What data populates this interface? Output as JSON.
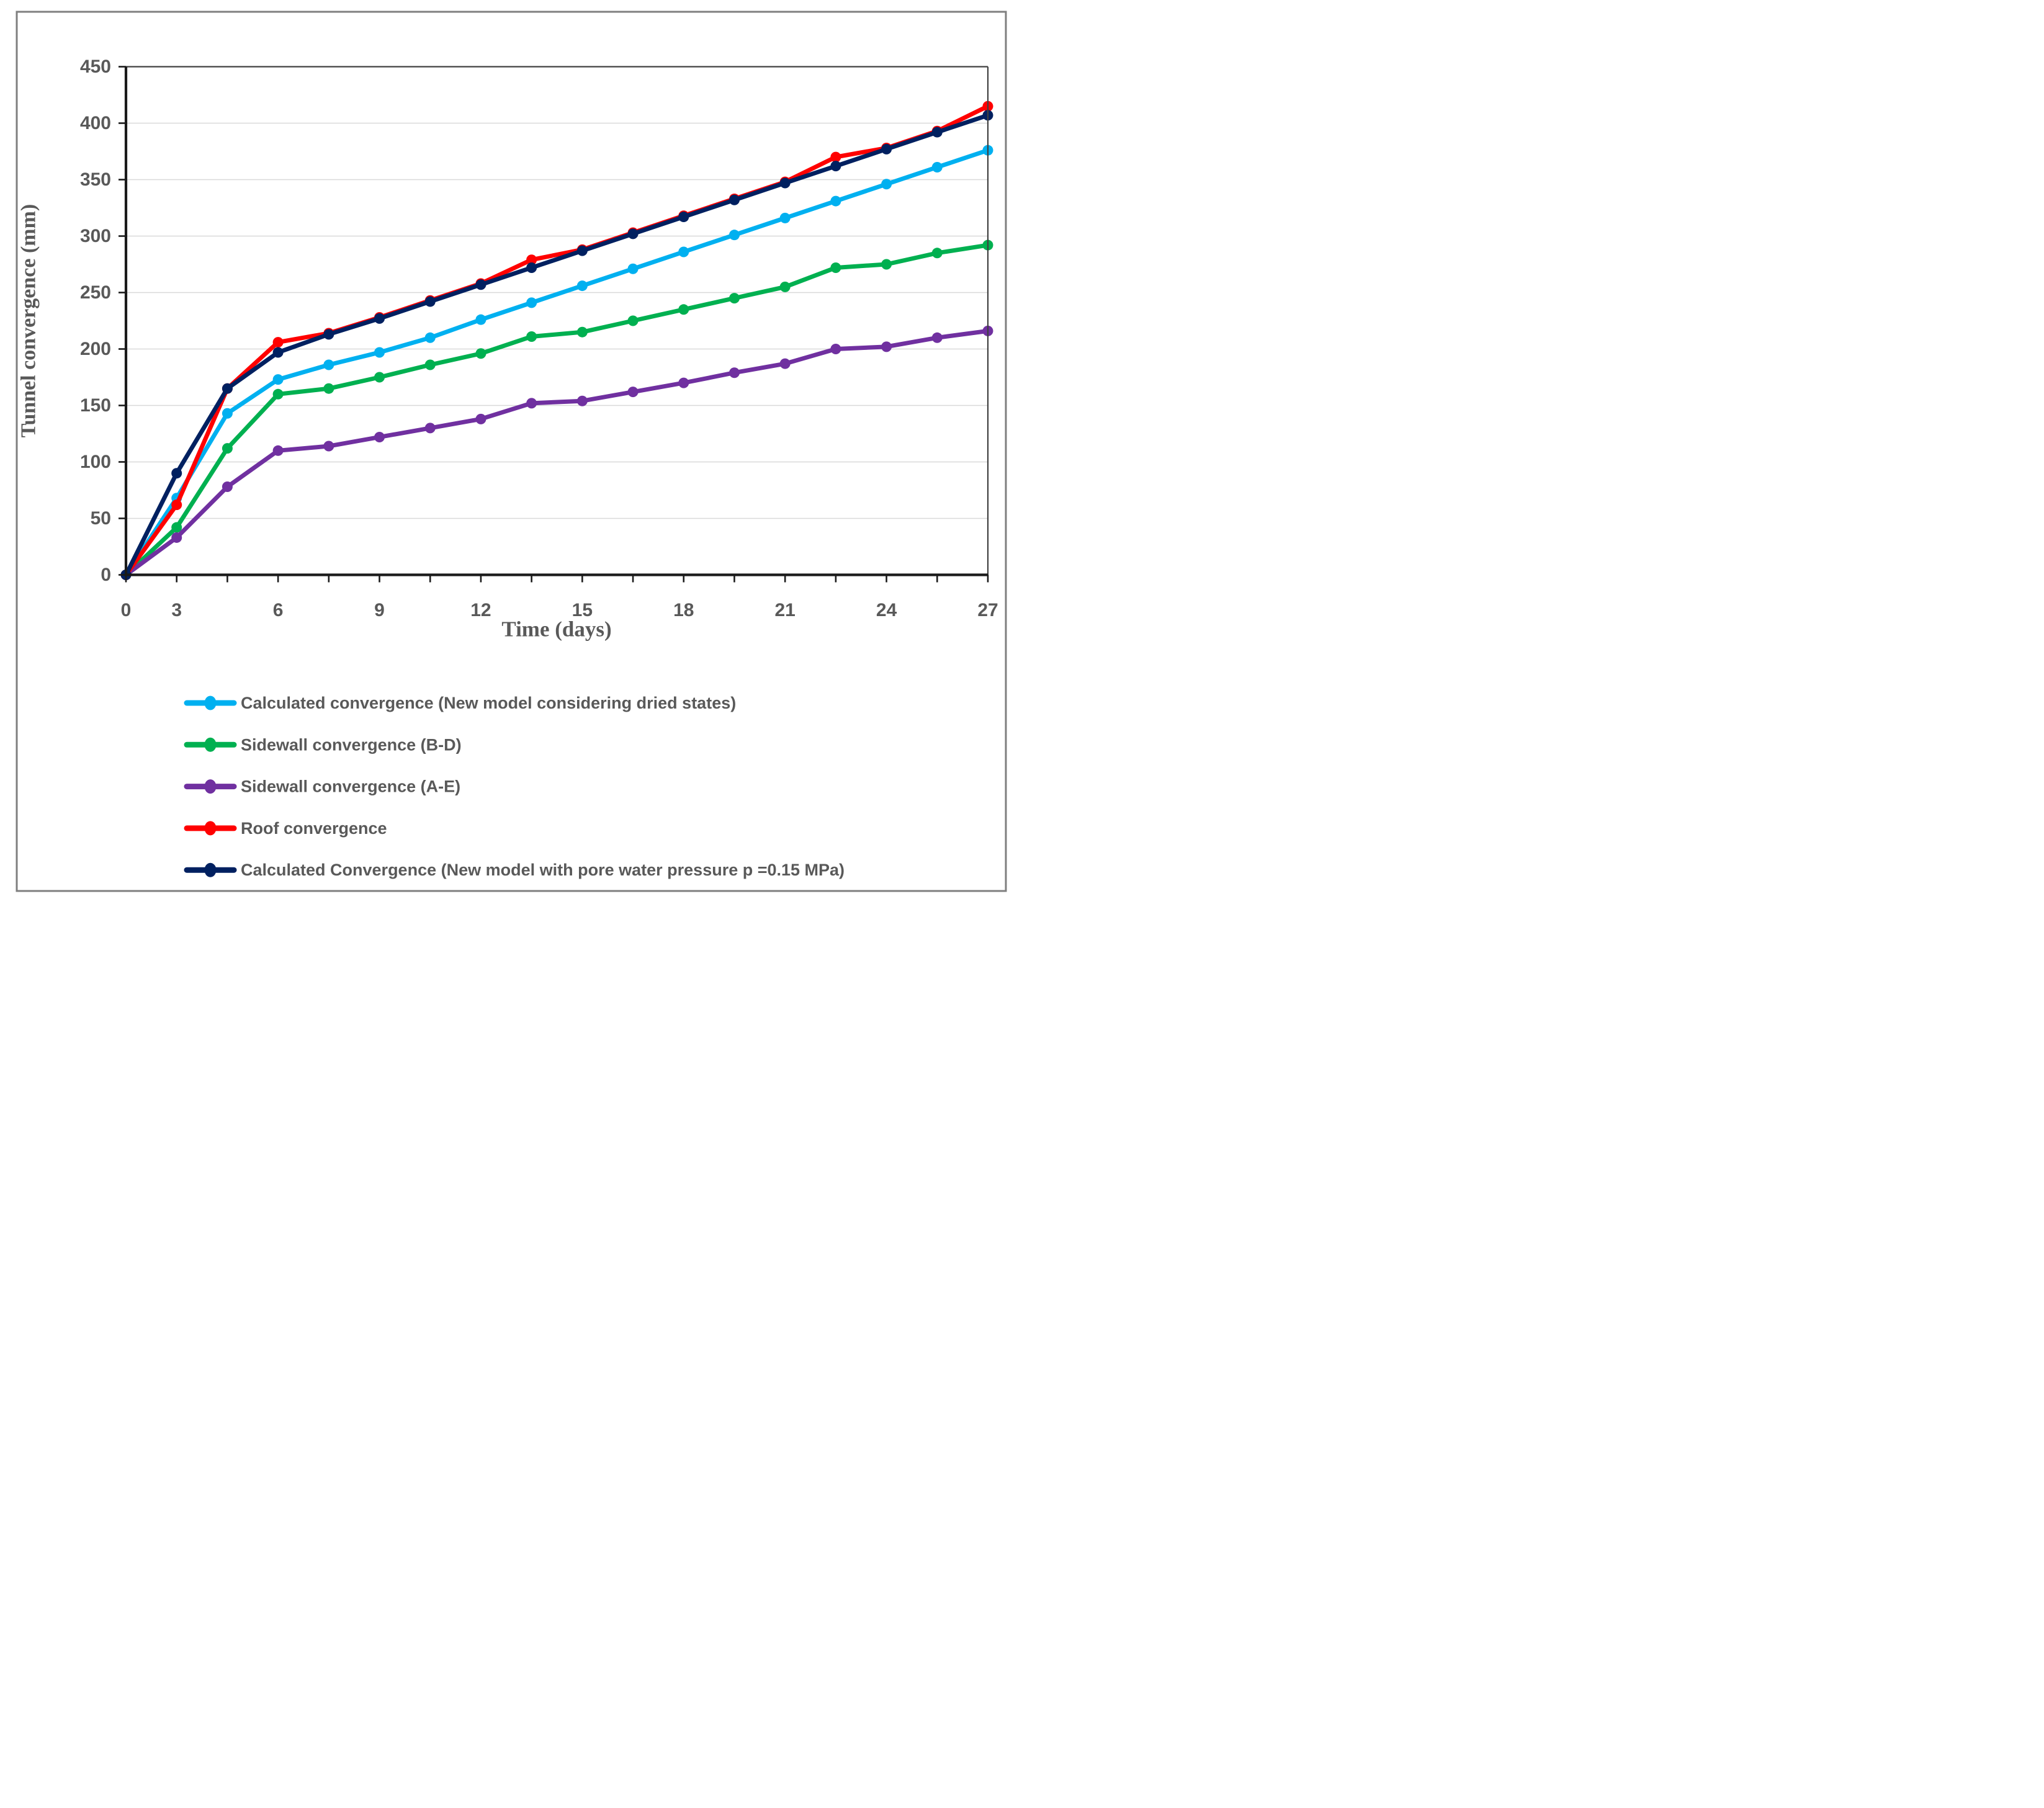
{
  "figure": {
    "description": "Line chart of tunnel convergence versus time",
    "border_color": "#7f7f7f",
    "background": "#ffffff"
  },
  "chart_data": {
    "type": "line",
    "title": "",
    "xlabel": "Time (days)",
    "ylabel": "Tunnel convergence (mm)",
    "x": [
      0,
      3,
      4.5,
      6,
      7.5,
      9,
      10.5,
      12,
      13.5,
      15,
      16.5,
      18,
      19.5,
      21,
      22.5,
      24,
      25.5,
      27
    ],
    "x_tick_labels": [
      "0",
      "3",
      "",
      "6",
      "",
      "9",
      "",
      "12",
      "",
      "15",
      "",
      "18",
      "",
      "21",
      "",
      "24",
      "",
      "27"
    ],
    "y_tick_labels": [
      "0",
      "50",
      "100",
      "150",
      "200",
      "250",
      "300",
      "350",
      "400",
      "450"
    ],
    "ylim": [
      0,
      450
    ],
    "y_tick_interval": 50,
    "grid": "horizontal",
    "gridline_color": "#d9d9d9",
    "axis_line_color": "#1a1a1a",
    "plot_border_color": "#404040",
    "label_color": "#595959",
    "legend_position": "bottom-left",
    "series": [
      {
        "name": "Calculated convergence (New model considering dried states)",
        "color": "#00B0F0",
        "values": [
          0,
          68,
          143,
          173,
          186,
          197,
          210,
          226,
          241,
          256,
          271,
          286,
          301,
          316,
          331,
          346,
          361,
          376
        ]
      },
      {
        "name": "Sidewall convergence (B-D)",
        "color": "#00B050",
        "values": [
          0,
          42,
          112,
          160,
          165,
          175,
          186,
          196,
          211,
          215,
          225,
          235,
          245,
          255,
          272,
          275,
          285,
          292
        ]
      },
      {
        "name": "Sidewall convergence (A-E)",
        "color": "#7030A0",
        "values": [
          0,
          33,
          78,
          110,
          114,
          122,
          130,
          138,
          152,
          154,
          162,
          170,
          179,
          187,
          200,
          202,
          210,
          216
        ]
      },
      {
        "name": "Roof convergence",
        "color": "#FF0000",
        "values": [
          0,
          62,
          165,
          206,
          214,
          228,
          243,
          258,
          279,
          288,
          303,
          318,
          333,
          348,
          370,
          378,
          393,
          415
        ]
      },
      {
        "name": "Calculated Convergence (New model with pore water pressure p =0.15 MPa)",
        "color": "#002060",
        "values": [
          0,
          90,
          165,
          197,
          213,
          227,
          242,
          257,
          272,
          287,
          302,
          317,
          332,
          347,
          362,
          377,
          392,
          407
        ]
      }
    ]
  }
}
